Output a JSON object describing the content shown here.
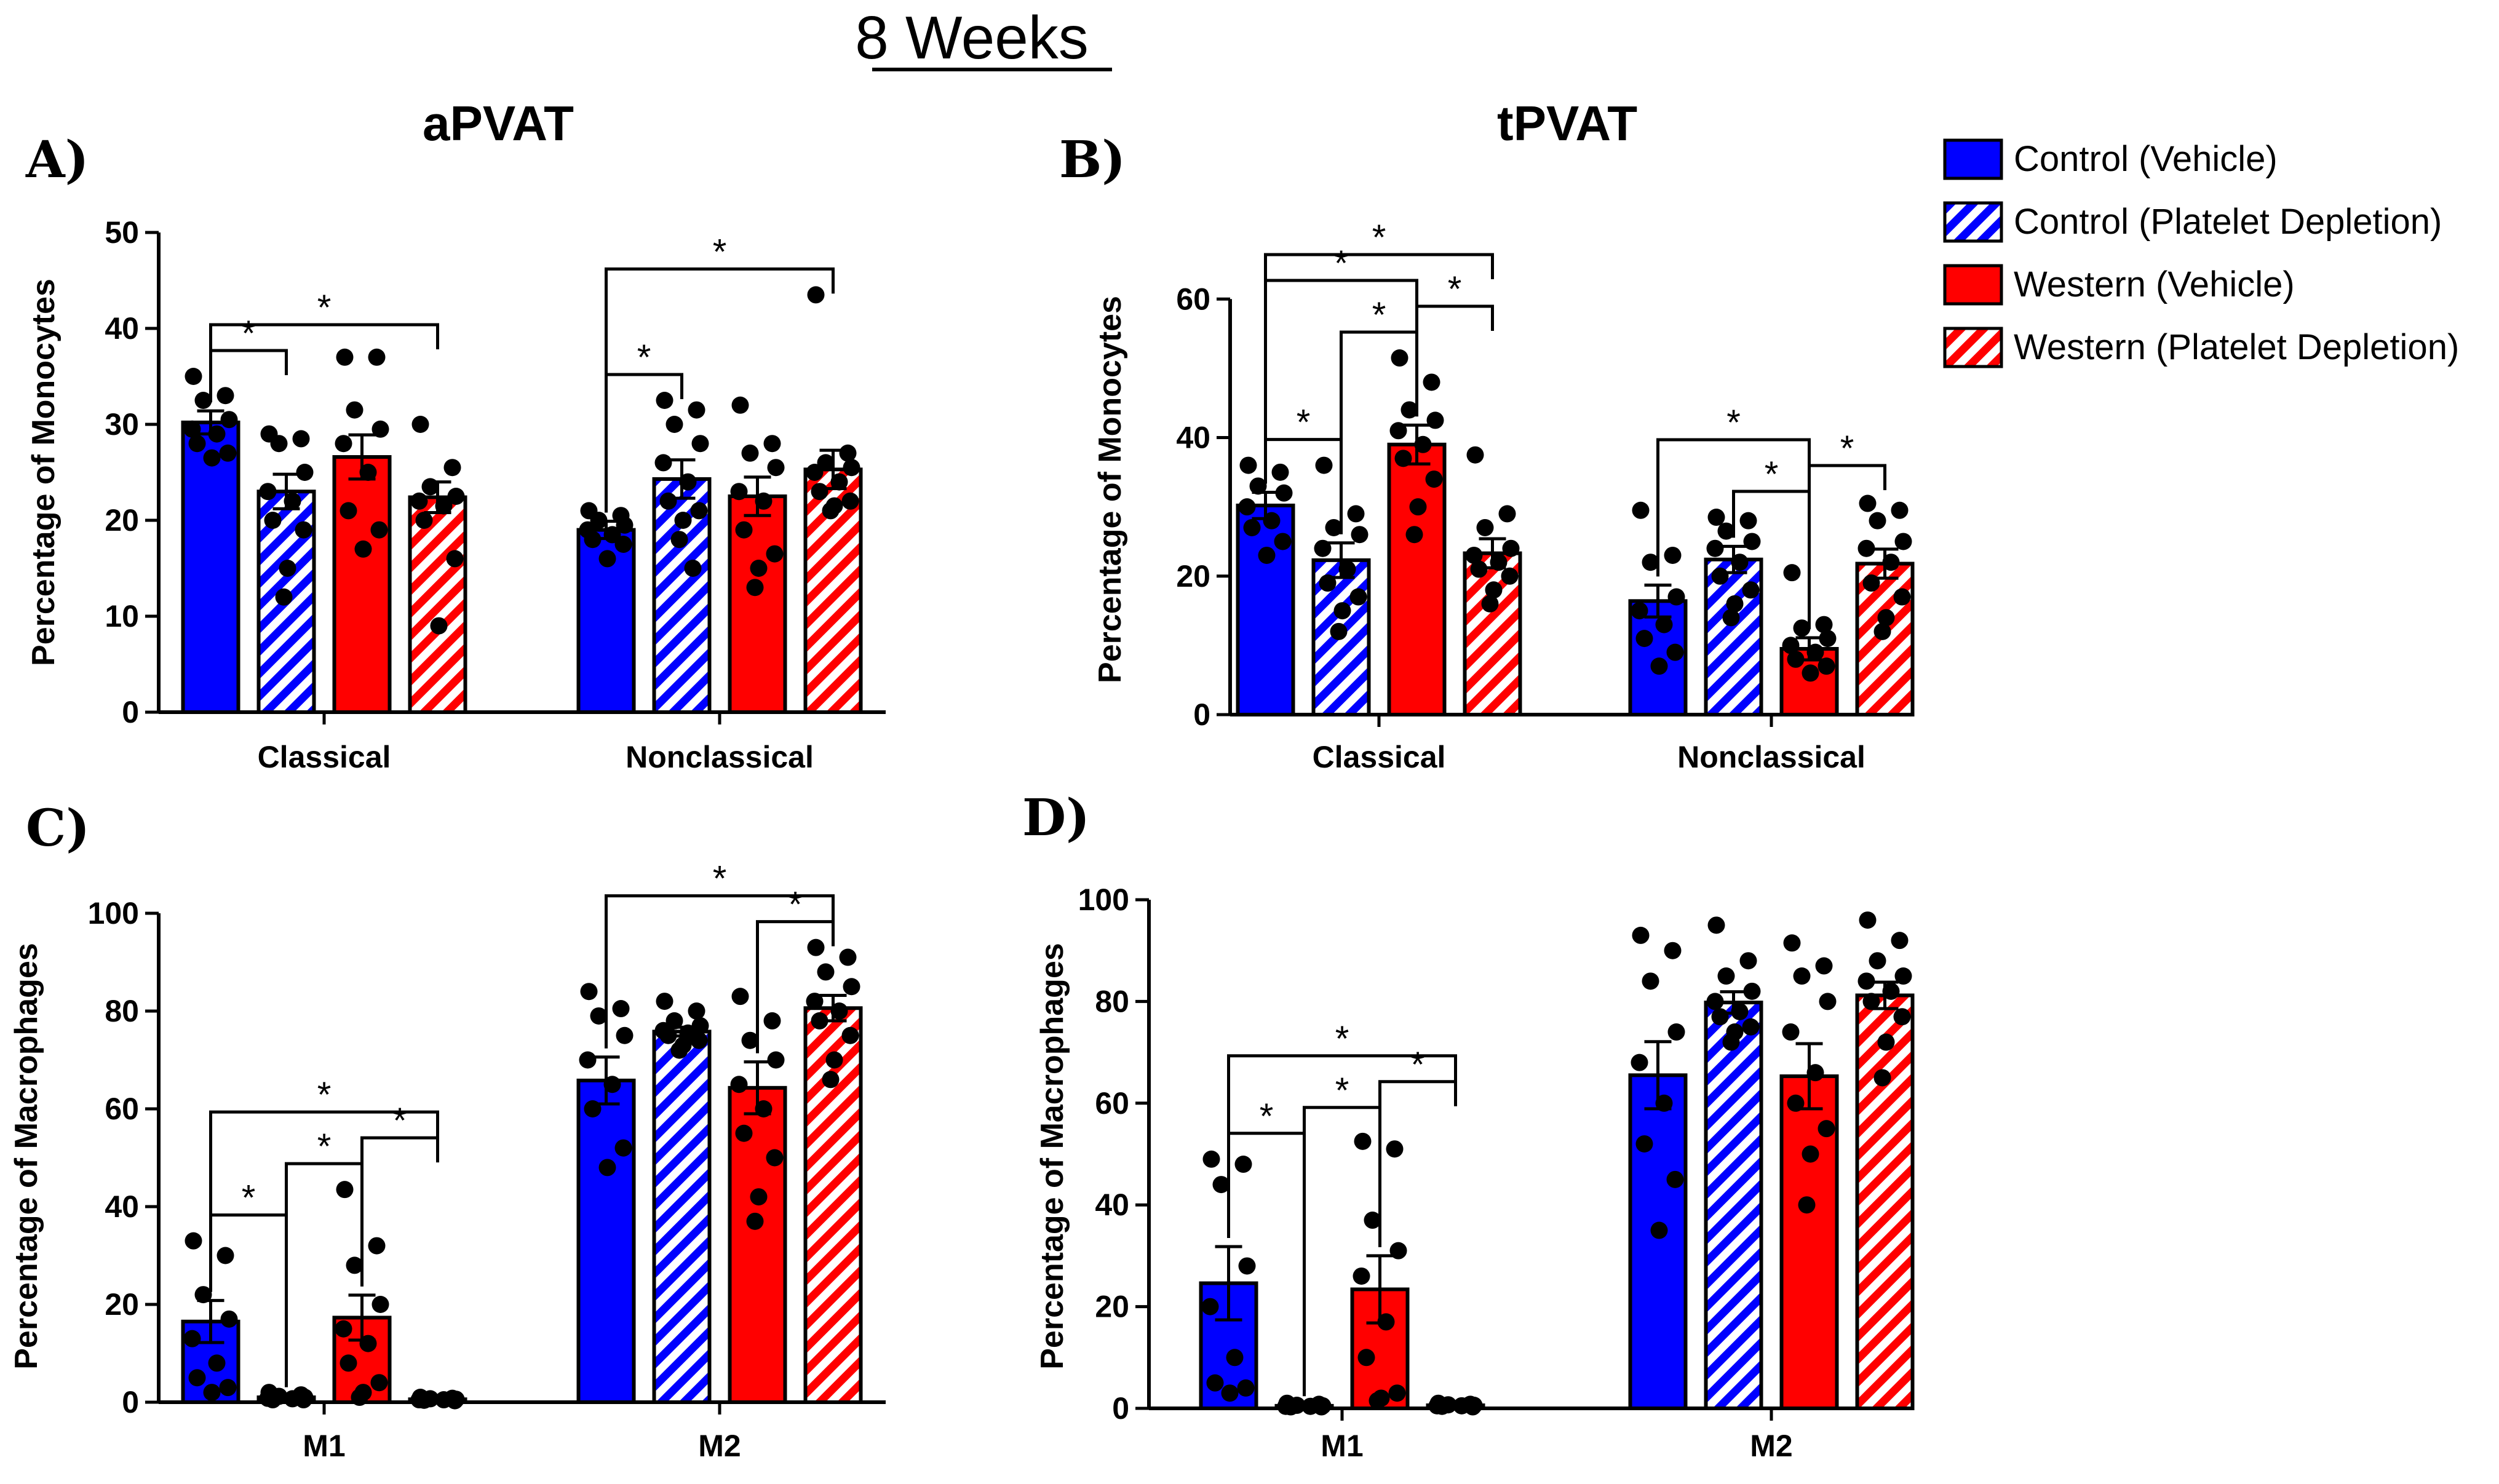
{
  "figure_title": "8 Weeks",
  "legend": [
    {
      "label": "Control (Vehicle)",
      "color": "#0000ff",
      "hatched": false
    },
    {
      "label": "Control (Platelet Depletion)",
      "color": "#0000ff",
      "hatched": true
    },
    {
      "label": "Western (Vehicle)",
      "color": "#ff0000",
      "hatched": false
    },
    {
      "label": "Western (Platelet Depletion)",
      "color": "#ff0000",
      "hatched": true
    }
  ],
  "colors": {
    "control": "#0000ff",
    "western": "#ff0000",
    "ink": "#000000"
  },
  "chart_data": [
    {
      "panel": "A)",
      "title": "aPVAT",
      "type": "bar",
      "ylabel": "Percentage of Monocytes",
      "ylim": [
        0,
        50
      ],
      "yticks": [
        0,
        10,
        20,
        30,
        40,
        50
      ],
      "categories": [
        "Classical",
        "Nonclassical"
      ],
      "series": [
        {
          "name": "Control (Vehicle)",
          "values": [
            30.2,
            19.0
          ],
          "sem": [
            1.2,
            0.9
          ],
          "points": [
            [
              35,
              33,
              32.5,
              30.5,
              29.5,
              29,
              28,
              27,
              26.5
            ],
            [
              21,
              20.5,
              20,
              19.5,
              19,
              18.5,
              18,
              17.5,
              16
            ]
          ]
        },
        {
          "name": "Control (Platelet Depletion)",
          "values": [
            23.0,
            24.3
          ],
          "sem": [
            1.8,
            2.0
          ],
          "points": [
            [
              29,
              28.5,
              28,
              25,
              23,
              22,
              20,
              19,
              15,
              12
            ],
            [
              32.5,
              31.5,
              30,
              28,
              26,
              24,
              22,
              21,
              20,
              18,
              15
            ]
          ]
        },
        {
          "name": "Western (Vehicle)",
          "values": [
            26.6,
            22.5
          ],
          "sem": [
            2.3,
            2.0
          ],
          "points": [
            [
              37,
              37,
              31.5,
              29.5,
              28,
              25,
              21,
              19,
              17
            ],
            [
              32,
              28,
              27,
              25.5,
              23,
              22,
              19,
              16.5,
              15,
              13
            ]
          ]
        },
        {
          "name": "Western (Platelet Depletion)",
          "values": [
            22.4,
            25.3
          ],
          "sem": [
            1.6,
            2.0
          ],
          "points": [
            [
              30,
              25.5,
              23.5,
              22.5,
              22,
              21.5,
              20,
              16,
              9
            ],
            [
              43.5,
              27,
              26,
              25.5,
              25,
              24,
              23,
              22,
              21.5,
              21
            ]
          ]
        }
      ],
      "significance": [
        {
          "category": 0,
          "from": 0,
          "to": 1,
          "label": "*"
        },
        {
          "category": 0,
          "from": 0,
          "to": 3,
          "label": "*"
        },
        {
          "category": 1,
          "from": 0,
          "to": 1,
          "label": "*"
        },
        {
          "category": 1,
          "from": 0,
          "to": 3,
          "label": "*"
        }
      ]
    },
    {
      "panel": "B)",
      "title": "tPVAT",
      "type": "bar",
      "ylabel": "Percentage of Monocytes",
      "ylim": [
        0,
        65
      ],
      "yticks": [
        0,
        20,
        40,
        60
      ],
      "categories": [
        "Classical",
        "Nonclassical"
      ],
      "series": [
        {
          "name": "Control (Vehicle)",
          "values": [
            30.2,
            16.4
          ],
          "sem": [
            1.9,
            2.3
          ],
          "points": [
            [
              36,
              35,
              33,
              32,
              30,
              28,
              27,
              25,
              23
            ],
            [
              29.5,
              23,
              22,
              17,
              15,
              13,
              11,
              9,
              7
            ]
          ]
        },
        {
          "name": "Control (Platelet Depletion)",
          "values": [
            22.3,
            22.4
          ],
          "sem": [
            2.5,
            1.9
          ],
          "points": [
            [
              36,
              29,
              27,
              26,
              24,
              21,
              19,
              17,
              15,
              12
            ],
            [
              28.5,
              28,
              26.5,
              25,
              24,
              22,
              20,
              18,
              16,
              14
            ]
          ]
        },
        {
          "name": "Western (Vehicle)",
          "values": [
            39.0,
            9.5
          ],
          "sem": [
            2.8,
            1.6
          ],
          "points": [
            [
              51.5,
              48,
              44,
              42.5,
              41,
              39,
              37,
              34,
              30,
              26
            ],
            [
              20.5,
              13,
              12.5,
              11,
              10,
              9,
              8,
              7,
              6
            ]
          ]
        },
        {
          "name": "Western (Platelet Depletion)",
          "values": [
            23.3,
            21.8
          ],
          "sem": [
            2.1,
            2.1
          ],
          "points": [
            [
              37.5,
              29,
              27,
              24,
              23,
              22,
              21,
              20,
              18,
              16
            ],
            [
              30.5,
              29.5,
              28,
              25,
              24,
              22,
              19,
              17,
              14,
              12
            ]
          ]
        }
      ],
      "significance": [
        {
          "category": 0,
          "from": 0,
          "to": 1,
          "label": "*"
        },
        {
          "category": 0,
          "from": 1,
          "to": 2,
          "label": "*"
        },
        {
          "category": 0,
          "from": 2,
          "to": 3,
          "label": "*"
        },
        {
          "category": 0,
          "from": 0,
          "to": 2,
          "label": "*"
        },
        {
          "category": 0,
          "from": 0,
          "to": 3,
          "label": "*"
        },
        {
          "category": 1,
          "from": 0,
          "to": 2,
          "label": "*"
        },
        {
          "category": 1,
          "from": 1,
          "to": 2,
          "label": "*"
        },
        {
          "category": 1,
          "from": 2,
          "to": 3,
          "label": "*"
        }
      ]
    },
    {
      "panel": "C)",
      "title": "",
      "type": "bar",
      "ylabel": "Percentage of Macrophages",
      "ylim": [
        0,
        100
      ],
      "yticks": [
        0,
        20,
        40,
        60,
        80,
        100
      ],
      "categories": [
        "M1",
        "M2"
      ],
      "series": [
        {
          "name": "Control (Vehicle)",
          "values": [
            16.5,
            65.8
          ],
          "sem": [
            4.3,
            4.8
          ],
          "points": [
            [
              33,
              30,
              22,
              17,
              13,
              8,
              5,
              3,
              2
            ],
            [
              84,
              80.5,
              79,
              75,
              70,
              65,
              60,
              52,
              48
            ]
          ]
        },
        {
          "name": "Control (Platelet Depletion)",
          "values": [
            1.0,
            75.8
          ],
          "sem": [
            0.3,
            0.9
          ],
          "points": [
            [
              2,
              1.5,
              1.2,
              1,
              0.8,
              0.7,
              0.5,
              0.5
            ],
            [
              82,
              80,
              78,
              77,
              76,
              75.5,
              75,
              74,
              73,
              72
            ]
          ]
        },
        {
          "name": "Western (Vehicle)",
          "values": [
            17.3,
            64.3
          ],
          "sem": [
            4.6,
            5.3
          ],
          "points": [
            [
              43.5,
              32,
              28,
              20,
              15,
              12,
              8,
              4,
              2,
              1
            ],
            [
              83,
              78,
              74,
              70,
              65,
              60,
              55,
              50,
              42,
              37
            ]
          ]
        },
        {
          "name": "Western (Platelet Depletion)",
          "values": [
            0.6,
            80.6
          ],
          "sem": [
            0.1,
            2.6
          ],
          "points": [
            [
              1,
              0.8,
              0.7,
              0.6,
              0.5,
              0.5,
              0.4,
              0.3
            ],
            [
              93,
              91,
              88,
              85,
              82,
              80,
              78,
              75,
              70,
              66
            ]
          ]
        }
      ],
      "significance": [
        {
          "category": 0,
          "from": 0,
          "to": 1,
          "label": "*"
        },
        {
          "category": 0,
          "from": 1,
          "to": 2,
          "label": "*"
        },
        {
          "category": 0,
          "from": 2,
          "to": 3,
          "label": "*"
        },
        {
          "category": 0,
          "from": 0,
          "to": 3,
          "label": "*"
        },
        {
          "category": 1,
          "from": 2,
          "to": 3,
          "label": "*"
        },
        {
          "category": 1,
          "from": 0,
          "to": 3,
          "label": "*"
        }
      ]
    },
    {
      "panel": "D)",
      "title": "",
      "type": "bar",
      "ylabel": "Percentage of Macrophages",
      "ylim": [
        0,
        100
      ],
      "yticks": [
        0,
        20,
        40,
        60,
        80,
        100
      ],
      "categories": [
        "M1",
        "M2"
      ],
      "series": [
        {
          "name": "Control (Vehicle)",
          "values": [
            24.6,
            65.5
          ],
          "sem": [
            7.2,
            6.6
          ],
          "points": [
            [
              49,
              48,
              44,
              28,
              20,
              10,
              5,
              4,
              3
            ],
            [
              93,
              90,
              84,
              74,
              68,
              60,
              52,
              45,
              35
            ]
          ]
        },
        {
          "name": "Control (Platelet Depletion)",
          "values": [
            0.5,
            79.8
          ],
          "sem": [
            0.2,
            2.1
          ],
          "points": [
            [
              1,
              0.8,
              0.6,
              0.5,
              0.4,
              0.4,
              0.3,
              0.3
            ],
            [
              95,
              88,
              85,
              82,
              80,
              78,
              77,
              75,
              74,
              72
            ]
          ]
        },
        {
          "name": "Western (Vehicle)",
          "values": [
            23.4,
            65.3
          ],
          "sem": [
            6.6,
            6.4
          ],
          "points": [
            [
              52.5,
              51,
              37,
              31,
              26,
              17,
              10,
              3,
              2,
              1.5
            ],
            [
              91.5,
              87,
              85,
              80,
              74,
              66,
              60,
              55,
              50,
              40
            ]
          ]
        },
        {
          "name": "Western (Platelet Depletion)",
          "values": [
            0.6,
            81.2
          ],
          "sem": [
            0.1,
            2.6
          ],
          "points": [
            [
              1,
              0.8,
              0.7,
              0.6,
              0.5,
              0.5,
              0.4,
              0.3
            ],
            [
              96,
              92,
              88,
              85,
              84,
              82,
              80,
              77,
              72,
              65
            ]
          ]
        }
      ],
      "significance": [
        {
          "category": 0,
          "from": 0,
          "to": 1,
          "label": "*"
        },
        {
          "category": 0,
          "from": 1,
          "to": 2,
          "label": "*"
        },
        {
          "category": 0,
          "from": 2,
          "to": 3,
          "label": "*"
        },
        {
          "category": 0,
          "from": 0,
          "to": 3,
          "label": "*"
        }
      ]
    }
  ]
}
